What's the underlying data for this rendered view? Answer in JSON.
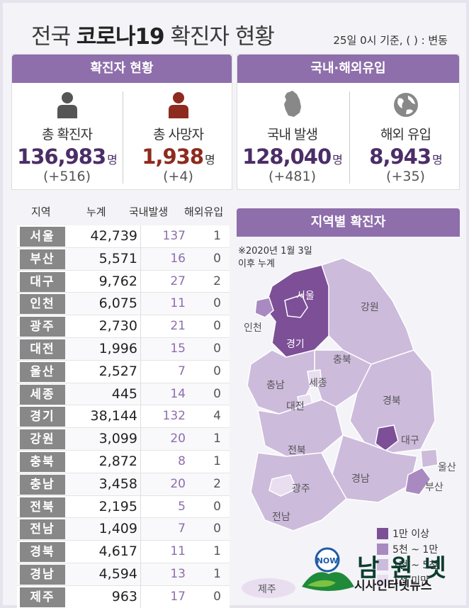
{
  "header": {
    "title_prefix": "전국 ",
    "title_bold": "코로나19",
    "title_suffix": " 확진자 현황",
    "basis": "25일  0시 기준, ( ) : 변동"
  },
  "summary": {
    "left_head": "확진자 현황",
    "right_head": "국내·해외유입",
    "unit": "명",
    "stats": [
      {
        "label": "총 확진자",
        "value": "136,983",
        "change": "(+516)",
        "icon": "person-icon"
      },
      {
        "label": "총 사망자",
        "value": "1,938",
        "change": "(+4)",
        "icon": "person-icon"
      },
      {
        "label": "국내 발생",
        "value": "128,040",
        "change": "(+481)",
        "icon": "korea-map-icon"
      },
      {
        "label": "해외 유입",
        "value": "8,943",
        "change": "(+35)",
        "icon": "globe-icon"
      }
    ]
  },
  "table": {
    "headers": [
      "지역",
      "누계",
      "국내발생",
      "해외유입"
    ],
    "rows": [
      {
        "region": "서울",
        "total": "42,739",
        "domestic": "137",
        "abroad": "1"
      },
      {
        "region": "부산",
        "total": "5,571",
        "domestic": "16",
        "abroad": "0"
      },
      {
        "region": "대구",
        "total": "9,762",
        "domestic": "27",
        "abroad": "2"
      },
      {
        "region": "인천",
        "total": "6,075",
        "domestic": "11",
        "abroad": "0"
      },
      {
        "region": "광주",
        "total": "2,730",
        "domestic": "21",
        "abroad": "0"
      },
      {
        "region": "대전",
        "total": "1,996",
        "domestic": "15",
        "abroad": "0"
      },
      {
        "region": "울산",
        "total": "2,527",
        "domestic": "7",
        "abroad": "0"
      },
      {
        "region": "세종",
        "total": "445",
        "domestic": "14",
        "abroad": "0"
      },
      {
        "region": "경기",
        "total": "38,144",
        "domestic": "132",
        "abroad": "4"
      },
      {
        "region": "강원",
        "total": "3,099",
        "domestic": "20",
        "abroad": "1"
      },
      {
        "region": "충북",
        "total": "2,872",
        "domestic": "8",
        "abroad": "1"
      },
      {
        "region": "충남",
        "total": "3,458",
        "domestic": "20",
        "abroad": "2"
      },
      {
        "region": "전북",
        "total": "2,195",
        "domestic": "5",
        "abroad": "0"
      },
      {
        "region": "전남",
        "total": "1,409",
        "domestic": "7",
        "abroad": "0"
      },
      {
        "region": "경북",
        "total": "4,617",
        "domestic": "11",
        "abroad": "1"
      },
      {
        "region": "경남",
        "total": "4,594",
        "domestic": "13",
        "abroad": "1"
      },
      {
        "region": "제주",
        "total": "963",
        "domestic": "17",
        "abroad": "0"
      }
    ]
  },
  "map": {
    "head": "지역별 확진자",
    "note_line1": "※2020년 1월 3일",
    "note_line2": "이후 누계",
    "labels": {
      "seoul": "서울",
      "incheon": "인천",
      "gyeonggi": "경기",
      "gangwon": "강원",
      "chungbuk": "충북",
      "sejong": "세종",
      "chungnam": "충남",
      "daejeon": "대전",
      "gyeongbuk": "경북",
      "daegu": "대구",
      "jeonbuk": "전북",
      "ulsan": "울산",
      "busan": "부산",
      "gyeongnam": "경남",
      "gwangju": "광주",
      "jeonnam": "전남",
      "jeju": "제주"
    },
    "legend": [
      {
        "label": "1만 이상",
        "color": "#7d4f97"
      },
      {
        "label": "5천 ~ 1만",
        "color": "#a98ac0"
      },
      {
        "label": "1천 ~ 5천",
        "color": "#cdbbdc"
      },
      {
        "label": "1천 미만",
        "color": "#e8def0"
      }
    ]
  },
  "logo": {
    "name": "남원넷",
    "sub": "시사인터넷뉴스",
    "emblem_text": "NOW"
  }
}
